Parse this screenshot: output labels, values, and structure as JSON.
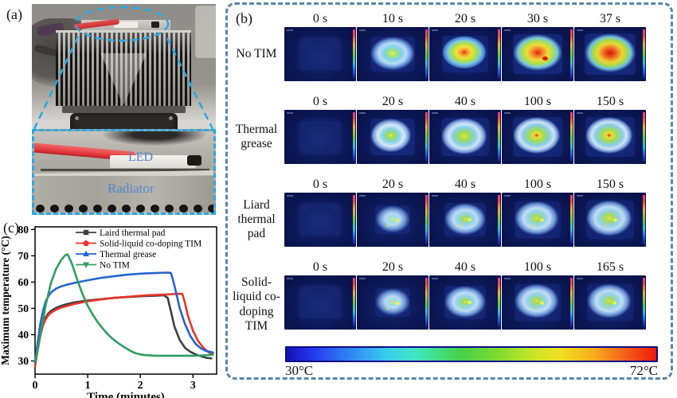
{
  "panel_a": {
    "label": "(a)",
    "inset_labels": {
      "led": "LED",
      "radiator": "Radiator"
    }
  },
  "panel_b": {
    "label": "(b)",
    "rows": [
      {
        "label": "No TIM",
        "frames": [
          {
            "time": "0 s",
            "heat": "none"
          },
          {
            "time": "10 s",
            "heat": "glow"
          },
          {
            "time": "20 s",
            "heat": "hot1"
          },
          {
            "time": "30 s",
            "heat": "hot2"
          },
          {
            "time": "37 s",
            "heat": "hot3"
          }
        ]
      },
      {
        "label": "Thermal grease",
        "frames": [
          {
            "time": "0 s",
            "heat": "none"
          },
          {
            "time": "20 s",
            "heat": "warm1"
          },
          {
            "time": "40 s",
            "heat": "warm2"
          },
          {
            "time": "100 s",
            "heat": "warm3"
          },
          {
            "time": "150 s",
            "heat": "warm3"
          }
        ]
      },
      {
        "label": "Liard thermal pad",
        "frames": [
          {
            "time": "0 s",
            "heat": "none"
          },
          {
            "time": "20 s",
            "heat": "cool1"
          },
          {
            "time": "40 s",
            "heat": "cool2"
          },
          {
            "time": "100 s",
            "heat": "cool3"
          },
          {
            "time": "150 s",
            "heat": "cool4"
          }
        ]
      },
      {
        "label": "Solid-liquid co-doping TIM",
        "frames": [
          {
            "time": "0 s",
            "heat": "none"
          },
          {
            "time": "20 s",
            "heat": "cool1"
          },
          {
            "time": "40 s",
            "heat": "cool2"
          },
          {
            "time": "100 s",
            "heat": "cool3"
          },
          {
            "time": "165 s",
            "heat": "cool3"
          }
        ]
      }
    ],
    "colorbar": {
      "min_label": "30°C",
      "max_label": "72°C"
    }
  },
  "panel_c": {
    "label": "(c)"
  },
  "chart_data": {
    "type": "line",
    "title": "",
    "xlabel": "Time (minutes)",
    "ylabel": "Maximum temperature (°C)",
    "xlim": [
      0,
      3.45
    ],
    "ylim": [
      25,
      81
    ],
    "xticks": [
      0,
      1,
      2,
      3
    ],
    "yticks": [
      30,
      40,
      50,
      60,
      70,
      80
    ],
    "grid": false,
    "legend_position": "top-inside",
    "series": [
      {
        "name": "Laird thermal pad",
        "color": "#3f3f3f",
        "marker": "square",
        "points": [
          [
            0,
            29.5
          ],
          [
            0.05,
            35
          ],
          [
            0.1,
            40
          ],
          [
            0.15,
            44
          ],
          [
            0.2,
            46.5
          ],
          [
            0.25,
            48
          ],
          [
            0.3,
            49
          ],
          [
            0.4,
            50.2
          ],
          [
            0.5,
            51
          ],
          [
            0.6,
            51.6
          ],
          [
            0.75,
            52.3
          ],
          [
            1.0,
            53
          ],
          [
            1.25,
            53.5
          ],
          [
            1.5,
            54
          ],
          [
            1.75,
            54.3
          ],
          [
            2.0,
            54.6
          ],
          [
            2.25,
            54.8
          ],
          [
            2.45,
            55
          ],
          [
            2.52,
            54
          ],
          [
            2.58,
            49
          ],
          [
            2.65,
            43
          ],
          [
            2.75,
            38
          ],
          [
            2.85,
            35
          ],
          [
            2.95,
            33.5
          ],
          [
            3.05,
            32.5
          ],
          [
            3.15,
            31.8
          ],
          [
            3.25,
            31.2
          ],
          [
            3.35,
            31
          ]
        ]
      },
      {
        "name": "Solid-liquid co-doping TIM",
        "color": "#e8352b",
        "marker": "pentagon",
        "points": [
          [
            0,
            28
          ],
          [
            0.05,
            34
          ],
          [
            0.1,
            39.5
          ],
          [
            0.15,
            43.5
          ],
          [
            0.2,
            45.8
          ],
          [
            0.25,
            47.3
          ],
          [
            0.3,
            48.3
          ],
          [
            0.4,
            49.5
          ],
          [
            0.5,
            50.3
          ],
          [
            0.75,
            51.7
          ],
          [
            1.0,
            52.7
          ],
          [
            1.25,
            53.4
          ],
          [
            1.5,
            54
          ],
          [
            1.75,
            54.4
          ],
          [
            2.0,
            54.8
          ],
          [
            2.25,
            55.1
          ],
          [
            2.5,
            55.3
          ],
          [
            2.7,
            55.5
          ],
          [
            2.8,
            55.5
          ],
          [
            2.85,
            52
          ],
          [
            2.9,
            47.5
          ],
          [
            3.0,
            41.5
          ],
          [
            3.1,
            37.5
          ],
          [
            3.2,
            35
          ],
          [
            3.3,
            33.3
          ],
          [
            3.38,
            32.5
          ]
        ]
      },
      {
        "name": "Thermal grease",
        "color": "#2563cf",
        "marker": "triangle-up",
        "points": [
          [
            0,
            29.5
          ],
          [
            0.05,
            37
          ],
          [
            0.1,
            44
          ],
          [
            0.15,
            49
          ],
          [
            0.2,
            52.5
          ],
          [
            0.25,
            54.5
          ],
          [
            0.3,
            56
          ],
          [
            0.4,
            57.5
          ],
          [
            0.5,
            58.4
          ],
          [
            0.6,
            59
          ],
          [
            0.75,
            59.7
          ],
          [
            1.0,
            60.7
          ],
          [
            1.25,
            61.6
          ],
          [
            1.5,
            62.2
          ],
          [
            1.75,
            62.8
          ],
          [
            2.0,
            63.2
          ],
          [
            2.25,
            63.4
          ],
          [
            2.5,
            63.6
          ],
          [
            2.58,
            63.5
          ],
          [
            2.62,
            61
          ],
          [
            2.68,
            56
          ],
          [
            2.75,
            50
          ],
          [
            2.85,
            44
          ],
          [
            2.95,
            39.5
          ],
          [
            3.05,
            36.5
          ],
          [
            3.15,
            34.8
          ],
          [
            3.25,
            33.8
          ],
          [
            3.38,
            33.2
          ]
        ]
      },
      {
        "name": "No TIM",
        "color": "#2e9e60",
        "marker": "triangle-down",
        "points": [
          [
            0,
            30
          ],
          [
            0.05,
            34
          ],
          [
            0.1,
            40
          ],
          [
            0.2,
            51
          ],
          [
            0.3,
            59.5
          ],
          [
            0.4,
            65
          ],
          [
            0.5,
            68.5
          ],
          [
            0.58,
            70.3
          ],
          [
            0.62,
            70.5
          ],
          [
            0.7,
            67
          ],
          [
            0.8,
            61
          ],
          [
            0.9,
            55.5
          ],
          [
            1.0,
            51
          ],
          [
            1.1,
            47.5
          ],
          [
            1.2,
            44.5
          ],
          [
            1.3,
            42
          ],
          [
            1.4,
            39.8
          ],
          [
            1.5,
            38
          ],
          [
            1.6,
            36.5
          ],
          [
            1.7,
            35.2
          ],
          [
            1.8,
            34
          ],
          [
            1.9,
            33
          ],
          [
            2.0,
            32.5
          ],
          [
            2.1,
            32.2
          ],
          [
            2.3,
            32
          ],
          [
            2.6,
            32
          ],
          [
            3.0,
            32
          ],
          [
            3.2,
            32.1
          ],
          [
            3.38,
            32.4
          ]
        ]
      }
    ]
  }
}
